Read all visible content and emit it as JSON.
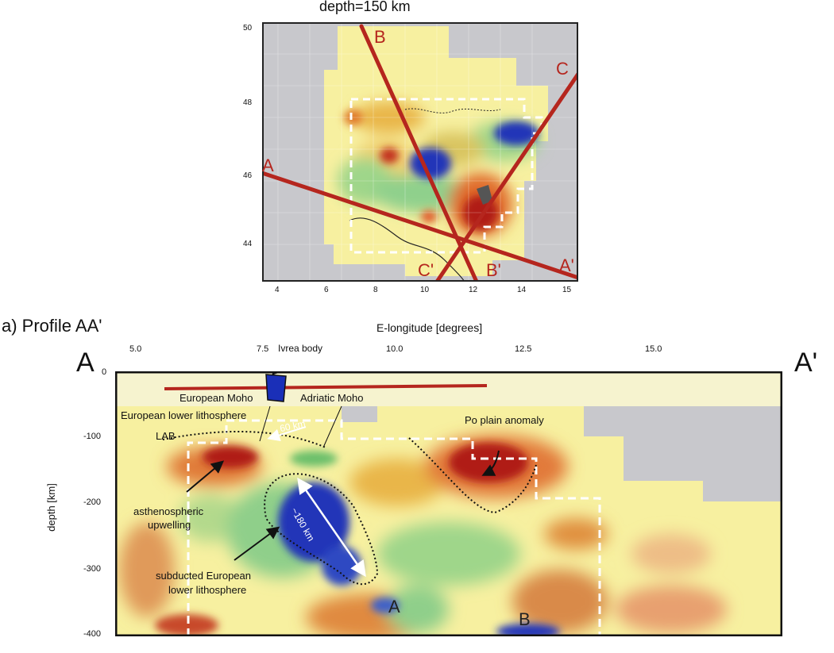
{
  "top_map": {
    "title": "depth=150 km",
    "x_ticks": [
      "4",
      "6",
      "8",
      "10",
      "12",
      "14",
      "15"
    ],
    "y_ticks": [
      "50",
      "48",
      "46",
      "44"
    ],
    "profile_labels": {
      "a": "A",
      "a_prime": "A'",
      "b": "B",
      "b_prime": "B'",
      "c": "C",
      "c_prime": "C'"
    }
  },
  "profile": {
    "panel_title": "a) Profile AA'",
    "x_axis_label": "E-longitude [degrees]",
    "y_axis_label": "depth [km]",
    "x_ticks": [
      "5.0",
      "7.5",
      "10.0",
      "12.5",
      "15.0"
    ],
    "y_ticks": [
      "0",
      "-100",
      "-200",
      "-300",
      "-400"
    ],
    "end_left": "A",
    "end_right": "A'",
    "annotations": {
      "ivrea": "Ivrea body",
      "euro_moho": "European Moho",
      "adriatic_moho": "Adriatic Moho",
      "euro_lower_litho": "European lower lithosphere",
      "lab": "LAB",
      "sixty_km": "60 km",
      "po_plain": "Po plain anomaly",
      "astheno_line1": "asthenospheric",
      "astheno_line2": "upwelling",
      "one_eighty": "~180 km",
      "subducted_line1": "subducted European",
      "subducted_line2": "lower lithosphere",
      "anomaly_a": "A",
      "anomaly_b": "B"
    }
  },
  "colors": {
    "red_line": "#b5261e",
    "high_velocity": "#1a2fb8",
    "low_velocity": "#b01a14",
    "background_field": "#f7f0a0",
    "no_data": "#c8c8cc"
  }
}
